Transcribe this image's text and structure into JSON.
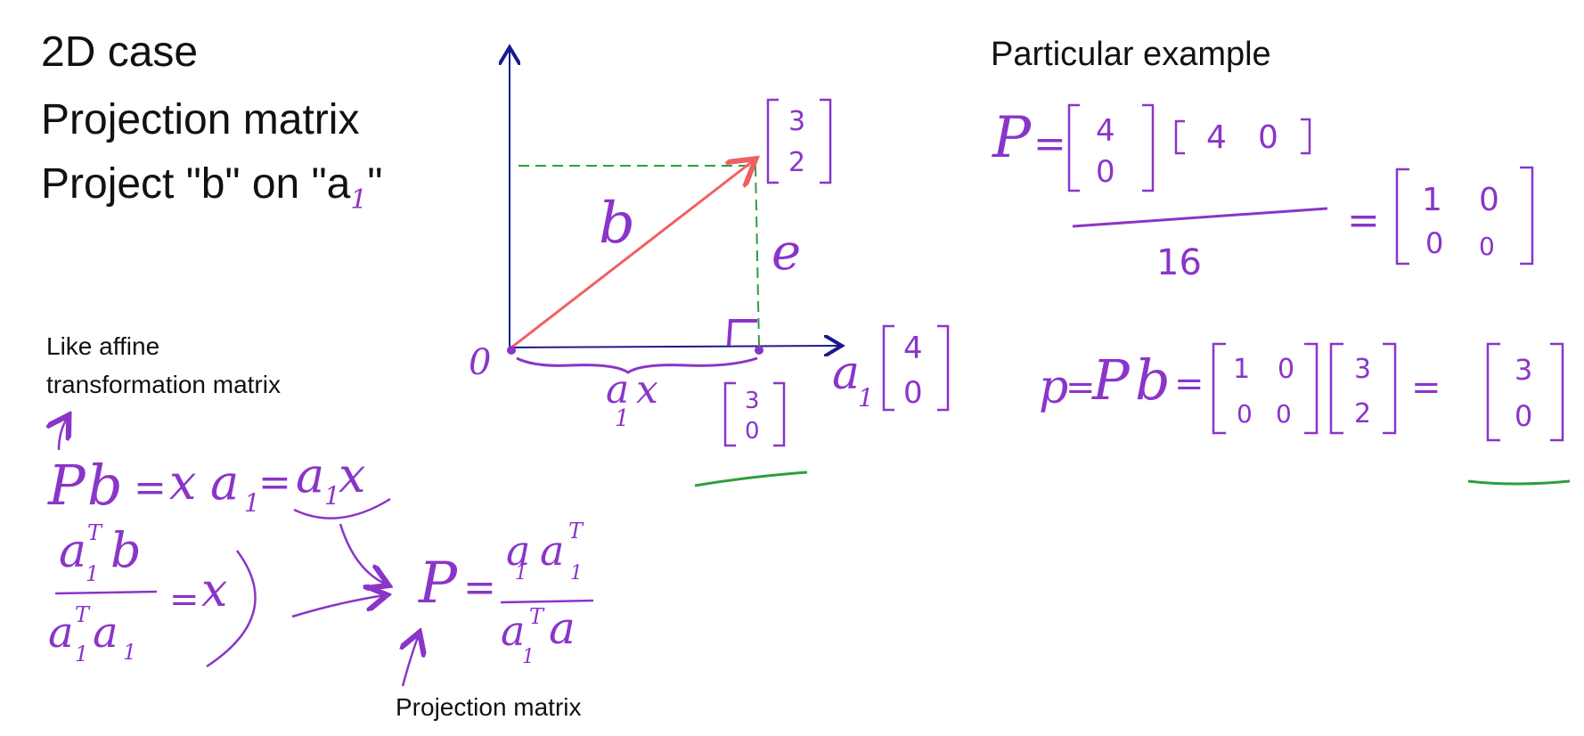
{
  "title": {
    "line1": "2D case",
    "line2": "Projection matrix",
    "line3_prefix": "Project \"b\" on \"a",
    "line3_suffix": "\""
  },
  "notes": {
    "affine_line1": "Like affine",
    "affine_line2": "transformation matrix",
    "projection_label": "Projection matrix"
  },
  "example_title": "Particular example",
  "handwriting": {
    "one": "1",
    "T": "T",
    "b": "b",
    "e": "e",
    "a": "a",
    "x": "x",
    "P": "P",
    "p": "p",
    "origin": "0",
    "eq": "=",
    "sixteen": "16",
    "n0": "0",
    "n1": "1",
    "n2": "2",
    "n3": "3",
    "n4": "4"
  },
  "colors": {
    "ink": "#8a35c9",
    "axis": "#1a1a8c",
    "vector_b": "#f06060",
    "dashed": "#2e9e3e",
    "underline": "#2e9e3e"
  }
}
